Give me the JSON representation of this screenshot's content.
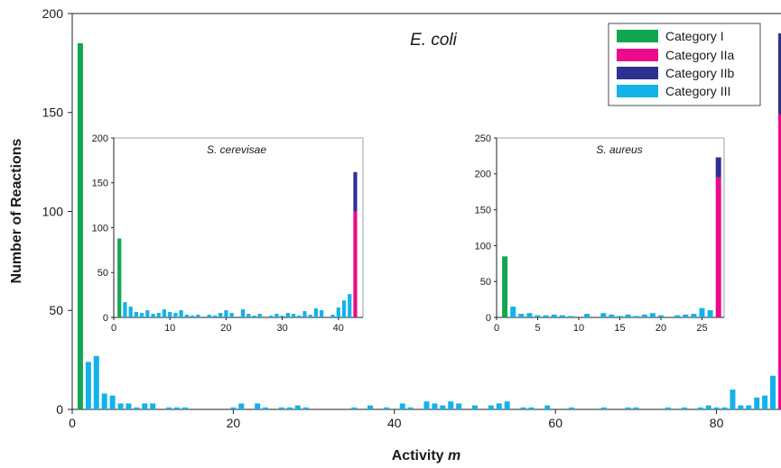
{
  "colors": {
    "category_i": "#12a650",
    "category_iia": "#ec0a8c",
    "category_iib": "#2e3191",
    "category_iii": "#13b2ea"
  },
  "chart_data": [
    {
      "id": "ecoli",
      "type": "bar",
      "title": "E. coli",
      "xlabel_prefix": "Activity ",
      "xlabel_var": "m",
      "ylabel": "Number of Reactions",
      "xlim": [
        0,
        88
      ],
      "ylim": [
        0,
        200
      ],
      "xticks": [
        0,
        20,
        40,
        60,
        80
      ],
      "yticks": [
        0,
        50,
        100,
        150,
        200
      ],
      "legend": {
        "placement": "top-right",
        "entries": [
          {
            "label": "Category I",
            "color_key": "category_i"
          },
          {
            "label": "Category IIa",
            "color_key": "category_iia"
          },
          {
            "label": "Category IIb",
            "color_key": "category_iib"
          },
          {
            "label": "Category III",
            "color_key": "category_iii"
          }
        ]
      },
      "stacked": [
        {
          "x": 1,
          "segments": [
            {
              "category": "category_i",
              "value": 185
            }
          ]
        },
        {
          "x": 88,
          "segments": [
            {
              "category": "category_iia",
              "value": 149
            },
            {
              "category": "category_iib",
              "value": 41
            }
          ]
        }
      ],
      "category_iii": [
        [
          2,
          24
        ],
        [
          3,
          27
        ],
        [
          4,
          8
        ],
        [
          5,
          7
        ],
        [
          6,
          3
        ],
        [
          7,
          3
        ],
        [
          8,
          1
        ],
        [
          9,
          3
        ],
        [
          10,
          3
        ],
        [
          12,
          1
        ],
        [
          13,
          1
        ],
        [
          14,
          1
        ],
        [
          20,
          1
        ],
        [
          21,
          3
        ],
        [
          23,
          3
        ],
        [
          24,
          1
        ],
        [
          26,
          1
        ],
        [
          27,
          1
        ],
        [
          28,
          2
        ],
        [
          29,
          1
        ],
        [
          35,
          1
        ],
        [
          37,
          2
        ],
        [
          39,
          1
        ],
        [
          41,
          3
        ],
        [
          42,
          1
        ],
        [
          44,
          4
        ],
        [
          45,
          3
        ],
        [
          46,
          2
        ],
        [
          47,
          4
        ],
        [
          48,
          3
        ],
        [
          50,
          2
        ],
        [
          52,
          2
        ],
        [
          53,
          3
        ],
        [
          54,
          4
        ],
        [
          56,
          1
        ],
        [
          57,
          1
        ],
        [
          59,
          2
        ],
        [
          62,
          1
        ],
        [
          66,
          1
        ],
        [
          69,
          1
        ],
        [
          70,
          1
        ],
        [
          74,
          1
        ],
        [
          76,
          1
        ],
        [
          78,
          1
        ],
        [
          79,
          2
        ],
        [
          80,
          1
        ],
        [
          81,
          1
        ],
        [
          82,
          10
        ],
        [
          83,
          2
        ],
        [
          84,
          2
        ],
        [
          85,
          6
        ],
        [
          86,
          7
        ],
        [
          87,
          17
        ],
        [
          88,
          23
        ]
      ]
    },
    {
      "id": "scerevisiae",
      "type": "bar",
      "title": "S. cerevisae",
      "xlim": [
        0,
        43
      ],
      "ylim": [
        0,
        200
      ],
      "xticks": [
        0,
        10,
        20,
        30,
        40
      ],
      "yticks": [
        0,
        50,
        100,
        150,
        200
      ],
      "stacked": [
        {
          "x": 1,
          "segments": [
            {
              "category": "category_i",
              "value": 88
            }
          ]
        },
        {
          "x": 43,
          "segments": [
            {
              "category": "category_iia",
              "value": 118
            },
            {
              "category": "category_iib",
              "value": 44
            }
          ]
        }
      ],
      "category_iii": [
        [
          2,
          17
        ],
        [
          3,
          12
        ],
        [
          4,
          6
        ],
        [
          5,
          5
        ],
        [
          6,
          8
        ],
        [
          7,
          4
        ],
        [
          8,
          5
        ],
        [
          9,
          9
        ],
        [
          10,
          6
        ],
        [
          11,
          5
        ],
        [
          12,
          8
        ],
        [
          13,
          3
        ],
        [
          14,
          2
        ],
        [
          15,
          3
        ],
        [
          17,
          3
        ],
        [
          18,
          2
        ],
        [
          19,
          5
        ],
        [
          20,
          8
        ],
        [
          21,
          5
        ],
        [
          23,
          9
        ],
        [
          24,
          4
        ],
        [
          25,
          2
        ],
        [
          26,
          4
        ],
        [
          28,
          2
        ],
        [
          29,
          4
        ],
        [
          30,
          2
        ],
        [
          31,
          5
        ],
        [
          32,
          4
        ],
        [
          33,
          2
        ],
        [
          34,
          7
        ],
        [
          35,
          3
        ],
        [
          36,
          10
        ],
        [
          37,
          8
        ],
        [
          39,
          3
        ],
        [
          40,
          11
        ],
        [
          41,
          19
        ],
        [
          42,
          26
        ]
      ]
    },
    {
      "id": "saureus",
      "type": "bar",
      "title": "S. aureus",
      "xlim": [
        0,
        27
      ],
      "ylim": [
        0,
        250
      ],
      "xticks": [
        0,
        5,
        10,
        15,
        20,
        25
      ],
      "yticks": [
        0,
        50,
        100,
        150,
        200,
        250
      ],
      "stacked": [
        {
          "x": 1,
          "segments": [
            {
              "category": "category_i",
              "value": 85
            }
          ]
        },
        {
          "x": 27,
          "segments": [
            {
              "category": "category_iia",
              "value": 195
            },
            {
              "category": "category_iib",
              "value": 28
            }
          ]
        }
      ],
      "category_iii": [
        [
          2,
          15
        ],
        [
          3,
          5
        ],
        [
          4,
          6
        ],
        [
          5,
          3
        ],
        [
          6,
          3
        ],
        [
          7,
          4
        ],
        [
          8,
          3
        ],
        [
          9,
          2
        ],
        [
          11,
          5
        ],
        [
          13,
          6
        ],
        [
          14,
          4
        ],
        [
          15,
          2
        ],
        [
          16,
          4
        ],
        [
          17,
          2
        ],
        [
          18,
          4
        ],
        [
          19,
          6
        ],
        [
          20,
          3
        ],
        [
          22,
          3
        ],
        [
          23,
          4
        ],
        [
          24,
          5
        ],
        [
          25,
          13
        ],
        [
          26,
          10
        ]
      ]
    }
  ]
}
